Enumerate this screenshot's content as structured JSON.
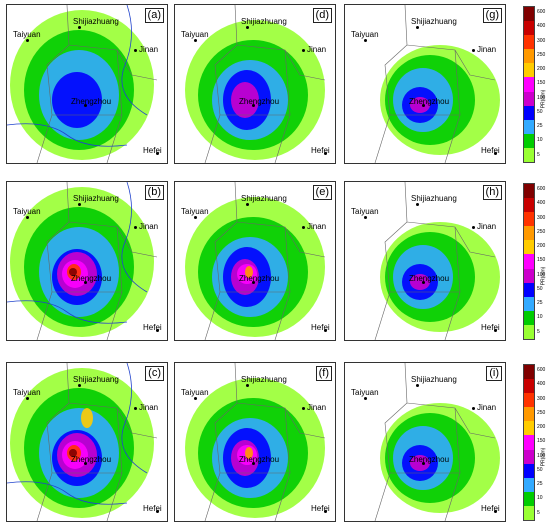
{
  "panels": [
    {
      "label": "(a)",
      "cities": [
        "Taiyuan",
        "Shijiazhuang",
        "Jinan",
        "Zhengzhou",
        "Hefei"
      ]
    },
    {
      "label": "(d)",
      "cities": [
        "Taiyuan",
        "Shijiazhuang",
        "Jinan",
        "Zhengzhou",
        "Hefei"
      ]
    },
    {
      "label": "(g)",
      "cities": [
        "Taiyuan",
        "Shijiazhuang",
        "Jinan",
        "Zhengzhou",
        "Hefei"
      ]
    },
    {
      "label": "(b)",
      "cities": [
        "Taiyuan",
        "Shijiazhuang",
        "Jinan",
        "Zhengzhou",
        "Hefei"
      ]
    },
    {
      "label": "(e)",
      "cities": [
        "Taiyuan",
        "Shijiazhuang",
        "Jinan",
        "Zhengzhou",
        "Hefei"
      ]
    },
    {
      "label": "(h)",
      "cities": [
        "Taiyuan",
        "Shijiazhuang",
        "Jinan",
        "Zhengzhou",
        "Hefei"
      ]
    },
    {
      "label": "(c)",
      "cities": [
        "Taiyuan",
        "Shijiazhuang",
        "Jinan",
        "Zhengzhou",
        "Hefei"
      ]
    },
    {
      "label": "(f)",
      "cities": [
        "Taiyuan",
        "Shijiazhuang",
        "Jinan",
        "Zhengzhou",
        "Hefei"
      ]
    },
    {
      "label": "(i)",
      "cities": [
        "Taiyuan",
        "Shijiazhuang",
        "Jinan",
        "Zhengzhou",
        "Hefei"
      ]
    }
  ],
  "colorbar": {
    "ticks": [
      "600",
      "400",
      "300",
      "250",
      "200",
      "150",
      "100",
      "50",
      "25",
      "10",
      "5"
    ],
    "unit": "PR(mm)",
    "colors": [
      "#800000",
      "#c80000",
      "#ff3300",
      "#ff9900",
      "#ffcc00",
      "#ff00ff",
      "#cc00cc",
      "#0000ff",
      "#33aaff",
      "#00cc00",
      "#99ff33"
    ]
  }
}
